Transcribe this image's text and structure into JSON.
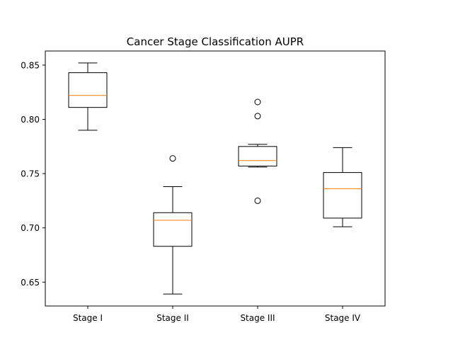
{
  "chart_data": {
    "type": "boxplot",
    "title": "Cancer Stage Classification AUPR",
    "xlabel": "",
    "ylabel": "",
    "ylim": [
      0.628,
      0.863
    ],
    "yticks": [
      0.65,
      0.7,
      0.75,
      0.8,
      0.85
    ],
    "ytick_labels": [
      "0.65",
      "0.70",
      "0.75",
      "0.80",
      "0.85"
    ],
    "categories": [
      "Stage I",
      "Stage II",
      "Stage III",
      "Stage IV"
    ],
    "boxes": [
      {
        "category": "Stage I",
        "whisker_low": 0.79,
        "q1": 0.811,
        "median": 0.822,
        "q3": 0.843,
        "whisker_high": 0.852,
        "outliers": []
      },
      {
        "category": "Stage II",
        "whisker_low": 0.639,
        "q1": 0.683,
        "median": 0.707,
        "q3": 0.714,
        "whisker_high": 0.738,
        "outliers": [
          0.764
        ]
      },
      {
        "category": "Stage III",
        "whisker_low": 0.756,
        "q1": 0.757,
        "median": 0.762,
        "q3": 0.775,
        "whisker_high": 0.777,
        "outliers": [
          0.725,
          0.803,
          0.816
        ]
      },
      {
        "category": "Stage IV",
        "whisker_low": 0.701,
        "q1": 0.709,
        "median": 0.736,
        "q3": 0.751,
        "whisker_high": 0.774,
        "outliers": []
      }
    ],
    "grid": false,
    "colors": {
      "box": "#000000",
      "median": "#ff7f0e",
      "outlier": "#000000"
    }
  }
}
